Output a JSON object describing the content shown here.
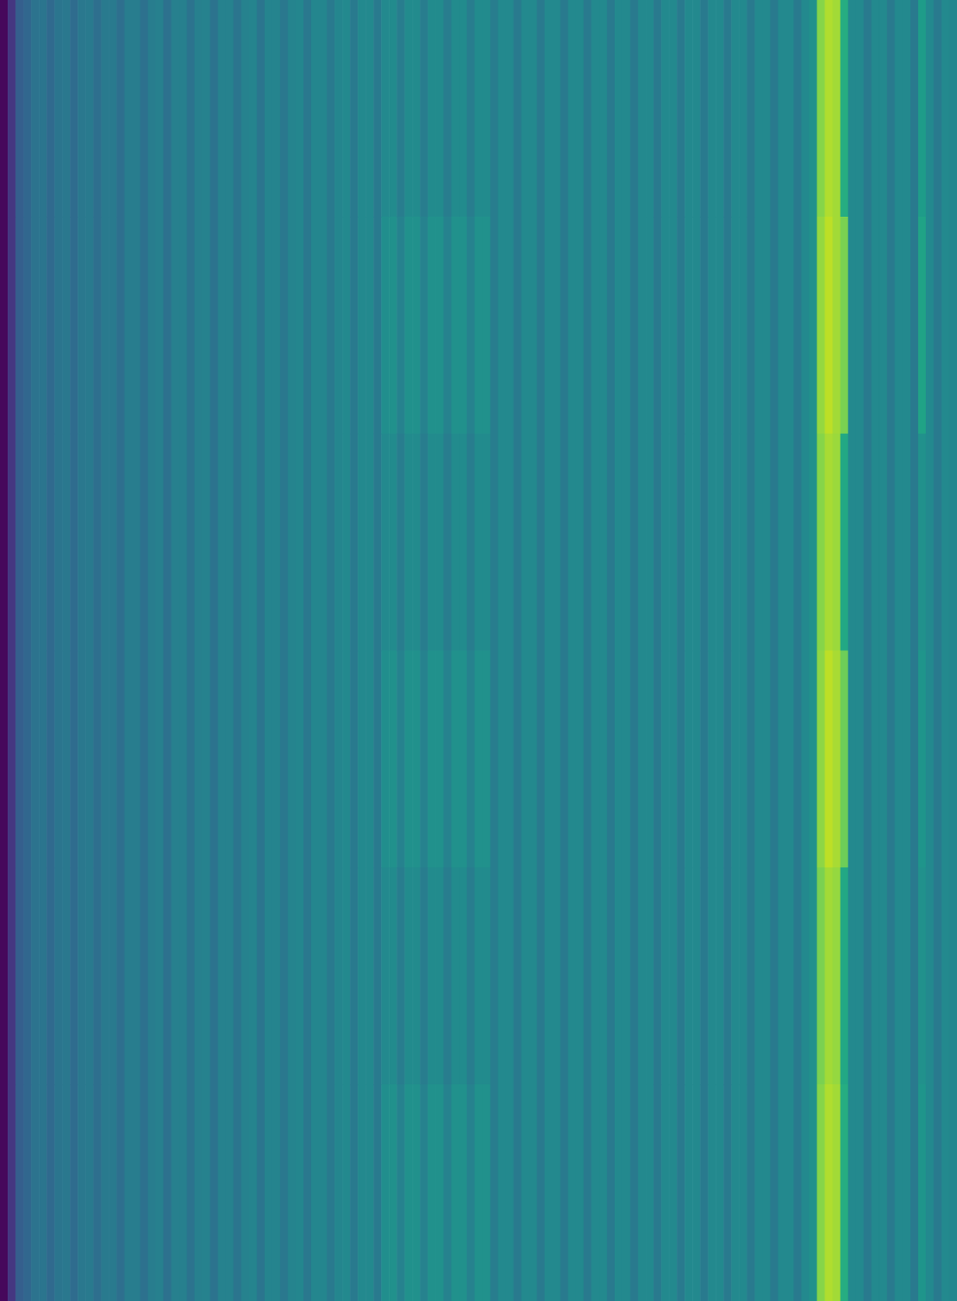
{
  "chart_data": {
    "type": "heatmap",
    "tick_labels": false,
    "zlim": [
      0,
      1
    ],
    "values": [
      [
        0.02,
        0.16,
        0.3,
        0.33,
        0.38,
        0.39,
        0.34,
        0.39,
        0.4,
        0.35,
        0.4,
        0.41,
        0.36,
        0.41,
        0.41,
        0.36,
        0.42,
        0.42,
        0.37,
        0.42,
        0.43,
        0.37,
        0.43,
        0.43,
        0.38,
        0.43,
        0.44,
        0.38,
        0.44,
        0.44,
        0.39,
        0.44,
        0.45,
        0.39,
        0.45,
        0.45,
        0.4,
        0.45,
        0.46,
        0.4,
        0.46,
        0.46,
        0.41,
        0.46,
        0.47,
        0.41,
        0.47,
        0.47,
        0.41,
        0.47,
        0.48,
        0.42,
        0.48,
        0.48,
        0.42,
        0.48,
        0.48,
        0.42,
        0.48,
        0.48,
        0.42,
        0.48,
        0.48,
        0.42,
        0.47,
        0.47,
        0.41,
        0.47,
        0.47,
        0.41,
        0.47,
        0.47,
        0.41,
        0.47,
        0.47,
        0.41,
        0.47,
        0.47,
        0.41,
        0.47,
        0.47,
        0.41,
        0.47,
        0.47,
        0.41,
        0.47,
        0.47,
        0.41,
        0.47,
        0.47,
        0.41,
        0.47,
        0.47,
        0.41,
        0.47,
        0.47,
        0.41,
        0.47,
        0.47,
        0.41,
        0.47,
        0.47,
        0.41,
        0.47,
        0.5,
        0.82,
        0.88,
        0.86,
        0.62,
        0.47,
        0.47,
        0.41,
        0.47,
        0.47,
        0.41,
        0.47,
        0.47,
        0.41,
        0.55,
        0.47,
        0.41,
        0.47,
        0.46
      ],
      [
        0.02,
        0.16,
        0.3,
        0.33,
        0.38,
        0.39,
        0.34,
        0.39,
        0.4,
        0.35,
        0.4,
        0.41,
        0.36,
        0.41,
        0.41,
        0.36,
        0.42,
        0.42,
        0.37,
        0.42,
        0.43,
        0.37,
        0.43,
        0.43,
        0.38,
        0.43,
        0.44,
        0.38,
        0.44,
        0.44,
        0.39,
        0.44,
        0.45,
        0.39,
        0.45,
        0.45,
        0.4,
        0.45,
        0.46,
        0.4,
        0.46,
        0.46,
        0.41,
        0.46,
        0.47,
        0.41,
        0.47,
        0.47,
        0.41,
        0.49,
        0.5,
        0.44,
        0.5,
        0.5,
        0.44,
        0.5,
        0.5,
        0.44,
        0.5,
        0.5,
        0.44,
        0.5,
        0.5,
        0.42,
        0.47,
        0.47,
        0.41,
        0.47,
        0.47,
        0.41,
        0.47,
        0.47,
        0.41,
        0.47,
        0.47,
        0.41,
        0.47,
        0.47,
        0.41,
        0.47,
        0.47,
        0.41,
        0.47,
        0.47,
        0.41,
        0.47,
        0.47,
        0.41,
        0.47,
        0.47,
        0.41,
        0.47,
        0.47,
        0.41,
        0.47,
        0.47,
        0.41,
        0.47,
        0.47,
        0.41,
        0.47,
        0.47,
        0.41,
        0.47,
        0.5,
        0.84,
        0.9,
        0.86,
        0.8,
        0.47,
        0.47,
        0.41,
        0.47,
        0.47,
        0.41,
        0.47,
        0.47,
        0.41,
        0.58,
        0.47,
        0.41,
        0.47,
        0.46
      ],
      [
        0.02,
        0.16,
        0.3,
        0.33,
        0.38,
        0.39,
        0.34,
        0.39,
        0.4,
        0.35,
        0.4,
        0.41,
        0.36,
        0.41,
        0.41,
        0.36,
        0.42,
        0.42,
        0.37,
        0.42,
        0.43,
        0.37,
        0.43,
        0.43,
        0.38,
        0.43,
        0.44,
        0.38,
        0.44,
        0.44,
        0.39,
        0.44,
        0.45,
        0.39,
        0.45,
        0.45,
        0.4,
        0.45,
        0.46,
        0.4,
        0.46,
        0.46,
        0.41,
        0.46,
        0.47,
        0.41,
        0.47,
        0.47,
        0.41,
        0.47,
        0.48,
        0.42,
        0.48,
        0.48,
        0.42,
        0.48,
        0.48,
        0.42,
        0.48,
        0.48,
        0.42,
        0.48,
        0.48,
        0.42,
        0.47,
        0.47,
        0.41,
        0.47,
        0.47,
        0.41,
        0.47,
        0.47,
        0.41,
        0.47,
        0.47,
        0.41,
        0.47,
        0.47,
        0.41,
        0.47,
        0.47,
        0.41,
        0.47,
        0.47,
        0.41,
        0.47,
        0.47,
        0.41,
        0.47,
        0.47,
        0.41,
        0.47,
        0.47,
        0.41,
        0.47,
        0.47,
        0.41,
        0.47,
        0.47,
        0.41,
        0.47,
        0.47,
        0.41,
        0.47,
        0.5,
        0.82,
        0.87,
        0.85,
        0.6,
        0.47,
        0.47,
        0.41,
        0.47,
        0.47,
        0.41,
        0.47,
        0.47,
        0.41,
        0.5,
        0.47,
        0.41,
        0.47,
        0.46
      ],
      [
        0.02,
        0.16,
        0.3,
        0.33,
        0.38,
        0.39,
        0.34,
        0.39,
        0.4,
        0.35,
        0.4,
        0.41,
        0.36,
        0.41,
        0.41,
        0.36,
        0.42,
        0.42,
        0.37,
        0.42,
        0.43,
        0.37,
        0.43,
        0.43,
        0.38,
        0.43,
        0.44,
        0.38,
        0.44,
        0.44,
        0.39,
        0.44,
        0.45,
        0.39,
        0.45,
        0.45,
        0.4,
        0.45,
        0.46,
        0.4,
        0.46,
        0.46,
        0.41,
        0.46,
        0.47,
        0.41,
        0.47,
        0.47,
        0.41,
        0.49,
        0.5,
        0.44,
        0.5,
        0.5,
        0.44,
        0.5,
        0.5,
        0.44,
        0.5,
        0.5,
        0.44,
        0.5,
        0.5,
        0.42,
        0.47,
        0.47,
        0.41,
        0.47,
        0.47,
        0.41,
        0.47,
        0.47,
        0.41,
        0.47,
        0.47,
        0.41,
        0.47,
        0.47,
        0.41,
        0.47,
        0.47,
        0.41,
        0.47,
        0.47,
        0.41,
        0.47,
        0.47,
        0.41,
        0.47,
        0.47,
        0.41,
        0.47,
        0.47,
        0.41,
        0.47,
        0.47,
        0.41,
        0.47,
        0.47,
        0.41,
        0.47,
        0.47,
        0.41,
        0.47,
        0.5,
        0.83,
        0.9,
        0.87,
        0.78,
        0.47,
        0.47,
        0.41,
        0.47,
        0.47,
        0.41,
        0.47,
        0.47,
        0.41,
        0.52,
        0.47,
        0.41,
        0.47,
        0.46
      ],
      [
        0.02,
        0.16,
        0.3,
        0.33,
        0.38,
        0.39,
        0.34,
        0.39,
        0.4,
        0.35,
        0.4,
        0.41,
        0.36,
        0.41,
        0.41,
        0.36,
        0.42,
        0.42,
        0.37,
        0.42,
        0.43,
        0.37,
        0.43,
        0.43,
        0.38,
        0.43,
        0.44,
        0.38,
        0.44,
        0.44,
        0.39,
        0.44,
        0.45,
        0.39,
        0.45,
        0.45,
        0.4,
        0.45,
        0.46,
        0.4,
        0.46,
        0.46,
        0.41,
        0.46,
        0.47,
        0.41,
        0.47,
        0.47,
        0.41,
        0.47,
        0.48,
        0.42,
        0.48,
        0.48,
        0.42,
        0.48,
        0.48,
        0.42,
        0.48,
        0.48,
        0.42,
        0.48,
        0.48,
        0.42,
        0.47,
        0.47,
        0.41,
        0.47,
        0.47,
        0.41,
        0.47,
        0.47,
        0.41,
        0.47,
        0.47,
        0.41,
        0.47,
        0.47,
        0.41,
        0.47,
        0.47,
        0.41,
        0.47,
        0.47,
        0.41,
        0.47,
        0.47,
        0.41,
        0.47,
        0.47,
        0.41,
        0.47,
        0.47,
        0.41,
        0.47,
        0.47,
        0.41,
        0.47,
        0.47,
        0.41,
        0.47,
        0.47,
        0.41,
        0.47,
        0.5,
        0.8,
        0.86,
        0.84,
        0.6,
        0.47,
        0.47,
        0.41,
        0.47,
        0.47,
        0.41,
        0.47,
        0.47,
        0.41,
        0.5,
        0.47,
        0.41,
        0.47,
        0.46
      ],
      [
        0.02,
        0.16,
        0.3,
        0.33,
        0.38,
        0.39,
        0.34,
        0.39,
        0.4,
        0.35,
        0.4,
        0.41,
        0.36,
        0.41,
        0.41,
        0.36,
        0.42,
        0.42,
        0.37,
        0.42,
        0.43,
        0.37,
        0.43,
        0.43,
        0.38,
        0.43,
        0.44,
        0.38,
        0.44,
        0.44,
        0.39,
        0.44,
        0.45,
        0.39,
        0.45,
        0.45,
        0.4,
        0.45,
        0.46,
        0.4,
        0.46,
        0.46,
        0.41,
        0.46,
        0.47,
        0.41,
        0.47,
        0.47,
        0.41,
        0.49,
        0.5,
        0.44,
        0.5,
        0.5,
        0.44,
        0.5,
        0.5,
        0.44,
        0.5,
        0.5,
        0.44,
        0.5,
        0.5,
        0.42,
        0.47,
        0.47,
        0.41,
        0.47,
        0.47,
        0.41,
        0.47,
        0.47,
        0.41,
        0.47,
        0.47,
        0.41,
        0.47,
        0.47,
        0.41,
        0.47,
        0.47,
        0.41,
        0.47,
        0.47,
        0.41,
        0.47,
        0.47,
        0.41,
        0.47,
        0.47,
        0.41,
        0.47,
        0.47,
        0.41,
        0.47,
        0.47,
        0.41,
        0.47,
        0.47,
        0.41,
        0.47,
        0.47,
        0.41,
        0.47,
        0.5,
        0.82,
        0.88,
        0.86,
        0.62,
        0.47,
        0.47,
        0.41,
        0.47,
        0.47,
        0.41,
        0.47,
        0.47,
        0.41,
        0.52,
        0.47,
        0.41,
        0.47,
        0.46
      ]
    ]
  }
}
